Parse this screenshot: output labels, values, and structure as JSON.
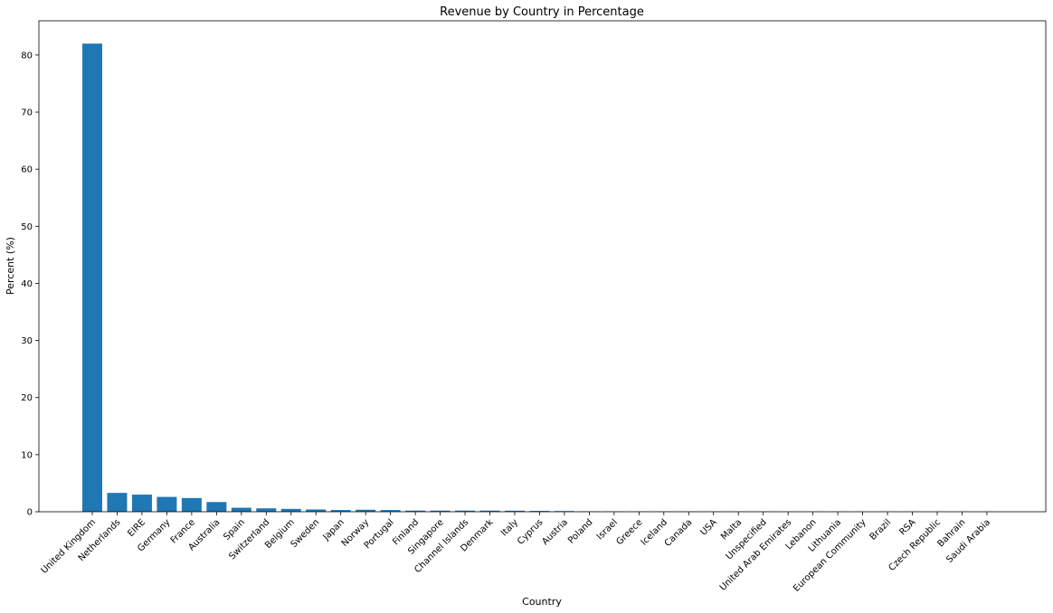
{
  "chart_data": {
    "type": "bar",
    "title": "Revenue by Country in Percentage",
    "xlabel": "Country",
    "ylabel": "Percent (%)",
    "ylim": [
      0,
      86
    ],
    "yticks": [
      0,
      10,
      20,
      30,
      40,
      50,
      60,
      70,
      80
    ],
    "grid": false,
    "bar_color": "#1f77b4",
    "categories": [
      "United Kingdom",
      "Netherlands",
      "EIRE",
      "Germany",
      "France",
      "Australia",
      "Spain",
      "Switzerland",
      "Belgium",
      "Sweden",
      "Japan",
      "Norway",
      "Portugal",
      "Finland",
      "Singapore",
      "Channel Islands",
      "Denmark",
      "Italy",
      "Cyprus",
      "Austria",
      "Poland",
      "Israel",
      "Greece",
      "Iceland",
      "Canada",
      "USA",
      "Malta",
      "Unspecified",
      "United Arab Emirates",
      "Lebanon",
      "Lithuania",
      "European Community",
      "Brazil",
      "RSA",
      "Czech Republic",
      "Bahrain",
      "Saudi Arabia"
    ],
    "values": [
      82.0,
      3.3,
      3.0,
      2.6,
      2.4,
      1.7,
      0.7,
      0.6,
      0.5,
      0.4,
      0.3,
      0.35,
      0.3,
      0.2,
      0.2,
      0.2,
      0.2,
      0.18,
      0.15,
      0.12,
      0.08,
      0.06,
      0.05,
      0.05,
      0.04,
      0.03,
      0.03,
      0.03,
      0.02,
      0.02,
      0.02,
      0.01,
      0.01,
      0.01,
      0.01,
      0.01,
      0.0
    ]
  }
}
